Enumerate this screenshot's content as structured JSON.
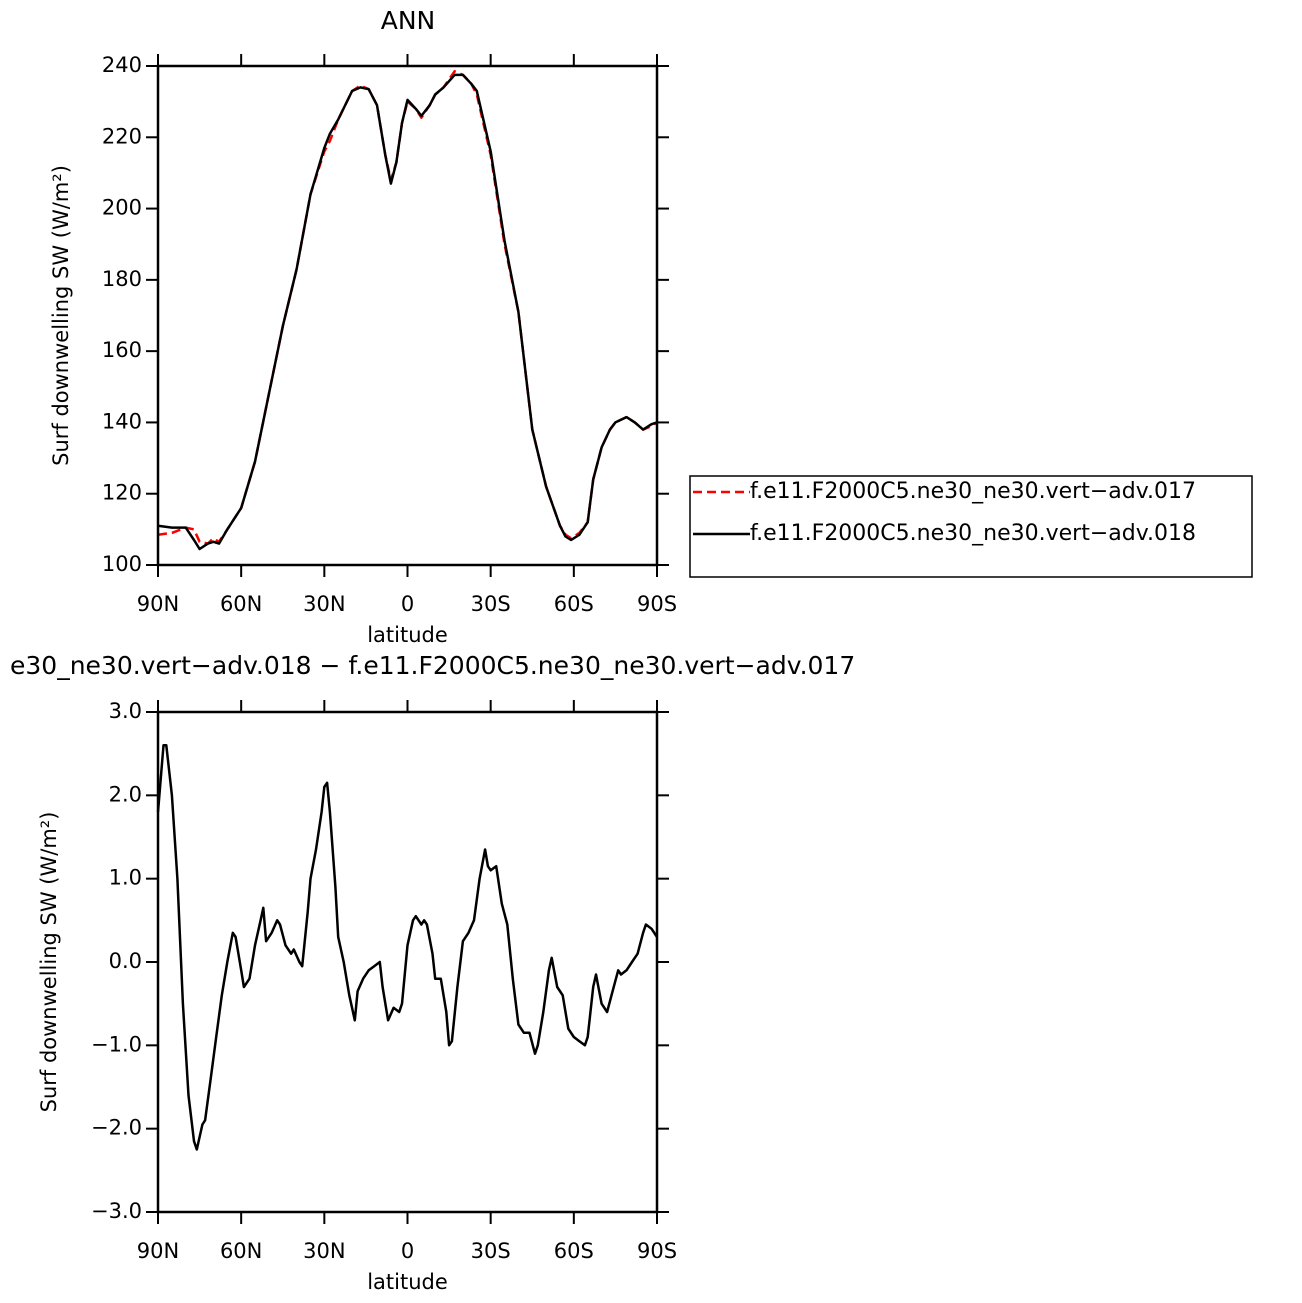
{
  "chart_data": [
    {
      "type": "line",
      "title": "ANN",
      "xlabel": "latitude",
      "ylabel": "Surf downwelling SW (W/m²)",
      "x": [
        90,
        85,
        80,
        77,
        75,
        72,
        70,
        68,
        65,
        60,
        55,
        50,
        45,
        40,
        35,
        30,
        28,
        25,
        20,
        17,
        14,
        11,
        8,
        6,
        4,
        2,
        0,
        -3,
        -5,
        -8,
        -10,
        -13,
        -17,
        -20,
        -23,
        -25,
        -30,
        -35,
        -40,
        -45,
        -50,
        -55,
        -57,
        -59,
        -62,
        -65,
        -67,
        -70,
        -73,
        -75,
        -79,
        -82,
        -85,
        -88,
        -90
      ],
      "series": [
        {
          "name": "f.e11.F2000C5.ne30_ne30.vert−adv.017",
          "color": "#ff0000",
          "dashed": true,
          "values": [
            108.5,
            109,
            110.5,
            110,
            106.5,
            106,
            107.5,
            106.5,
            110,
            116,
            129,
            148,
            167,
            183,
            204,
            216,
            219,
            225,
            233,
            234.5,
            233.5,
            229,
            215,
            208,
            213,
            224,
            230,
            228,
            225.5,
            229,
            232,
            234,
            238.5,
            237.5,
            235,
            232,
            215,
            190,
            171,
            138,
            122,
            111,
            108.5,
            107.5,
            109,
            112,
            124,
            133,
            138,
            140,
            141.5,
            140,
            138,
            139,
            140
          ]
        },
        {
          "name": "f.e11.F2000C5.ne30_ne30.vert−adv.018",
          "color": "#000000",
          "dashed": false,
          "values": [
            111,
            110.5,
            110.5,
            107,
            104.5,
            106,
            106.5,
            106,
            110,
            116,
            129,
            148,
            167,
            183,
            204,
            217,
            221,
            225,
            233,
            234,
            233.5,
            229,
            215,
            207,
            213,
            224,
            230.5,
            228,
            226,
            229,
            232,
            234,
            237.5,
            237.5,
            235,
            233,
            216,
            191,
            171,
            138,
            122,
            111,
            108,
            107,
            108.5,
            112,
            124,
            133,
            138,
            140,
            141.5,
            140,
            138,
            139.5,
            140
          ]
        }
      ],
      "xlim": [
        90,
        -90
      ],
      "xticks": [
        {
          "value": 90,
          "label": "90N"
        },
        {
          "value": 60,
          "label": "60N"
        },
        {
          "value": 30,
          "label": "30N"
        },
        0,
        {
          "value": -30,
          "label": "30S"
        },
        {
          "value": -60,
          "label": "60S"
        },
        {
          "value": -90,
          "label": "90S"
        }
      ],
      "ylim": [
        100,
        240
      ],
      "yticks": [
        100,
        120,
        140,
        160,
        180,
        200,
        220,
        240
      ],
      "legend": "outside-right",
      "grid": false
    },
    {
      "type": "line",
      "title": "e30_ne30.vert−adv.018 − f.e11.F2000C5.ne30_ne30.vert−adv.017",
      "xlabel": "latitude",
      "ylabel": "Surf downwelling SW (W/m²)",
      "x": [
        90,
        88,
        87,
        85,
        83,
        81,
        79,
        77,
        76,
        74,
        73,
        71,
        69,
        67,
        65,
        63,
        62,
        60,
        59,
        57,
        55,
        53,
        52,
        51,
        49,
        47,
        46,
        44,
        42,
        41,
        39,
        38,
        36,
        35,
        33,
        31,
        30,
        29,
        28,
        26,
        25,
        23,
        21,
        19,
        18,
        16,
        14,
        12,
        10,
        9,
        7,
        5,
        3,
        2,
        0,
        -2,
        -3,
        -5,
        -6,
        -7,
        -9,
        -10,
        -12,
        -14,
        -15,
        -16,
        -18,
        -20,
        -22,
        -24,
        -26,
        -28,
        -29,
        -30,
        -32,
        -34,
        -36,
        -38,
        -40,
        -42,
        -44,
        -46,
        -47,
        -49,
        -51,
        -52,
        -54,
        -56,
        -58,
        -60,
        -62,
        -64,
        -65,
        -67,
        -68,
        -70,
        -72,
        -74,
        -76,
        -77,
        -79,
        -81,
        -83,
        -85,
        -86,
        -88,
        -90
      ],
      "color": "#000000",
      "values": [
        1.8,
        2.6,
        2.6,
        2.0,
        1.0,
        -0.5,
        -1.6,
        -2.15,
        -2.25,
        -1.95,
        -1.9,
        -1.4,
        -0.9,
        -0.4,
        0.0,
        0.35,
        0.3,
        -0.1,
        -0.3,
        -0.2,
        0.2,
        0.5,
        0.65,
        0.25,
        0.35,
        0.5,
        0.45,
        0.2,
        0.1,
        0.15,
        0.0,
        -0.05,
        0.6,
        1.0,
        1.35,
        1.8,
        2.1,
        2.15,
        1.8,
        0.9,
        0.3,
        0.0,
        -0.4,
        -0.7,
        -0.35,
        -0.2,
        -0.1,
        -0.05,
        0.0,
        -0.3,
        -0.7,
        -0.55,
        -0.6,
        -0.5,
        0.2,
        0.5,
        0.55,
        0.45,
        0.5,
        0.45,
        0.1,
        -0.2,
        -0.2,
        -0.6,
        -1.0,
        -0.95,
        -0.3,
        0.25,
        0.35,
        0.5,
        1.0,
        1.35,
        1.15,
        1.1,
        1.15,
        0.7,
        0.45,
        -0.2,
        -0.75,
        -0.85,
        -0.85,
        -1.1,
        -1.0,
        -0.6,
        -0.1,
        0.05,
        -0.3,
        -0.4,
        -0.8,
        -0.9,
        -0.95,
        -1.0,
        -0.9,
        -0.3,
        -0.15,
        -0.5,
        -0.6,
        -0.35,
        -0.1,
        -0.15,
        -0.1,
        0.0,
        0.1,
        0.35,
        0.45,
        0.4,
        0.3
      ],
      "xlim": [
        90,
        -90
      ],
      "xticks": [
        {
          "value": 90,
          "label": "90N"
        },
        {
          "value": 60,
          "label": "60N"
        },
        {
          "value": 30,
          "label": "30N"
        },
        0,
        {
          "value": -30,
          "label": "30S"
        },
        {
          "value": -60,
          "label": "60S"
        },
        {
          "value": -90,
          "label": "90S"
        }
      ],
      "ylim": [
        -3,
        3
      ],
      "yticks": [
        {
          "value": -3,
          "label": "−3.0"
        },
        {
          "value": -2,
          "label": "−2.0"
        },
        {
          "value": -1,
          "label": "−1.0"
        },
        {
          "value": 0,
          "label": "0.0"
        },
        {
          "value": 1,
          "label": "1.0"
        },
        {
          "value": 2,
          "label": "2.0"
        },
        {
          "value": 3,
          "label": "3.0"
        }
      ],
      "grid": false
    }
  ]
}
